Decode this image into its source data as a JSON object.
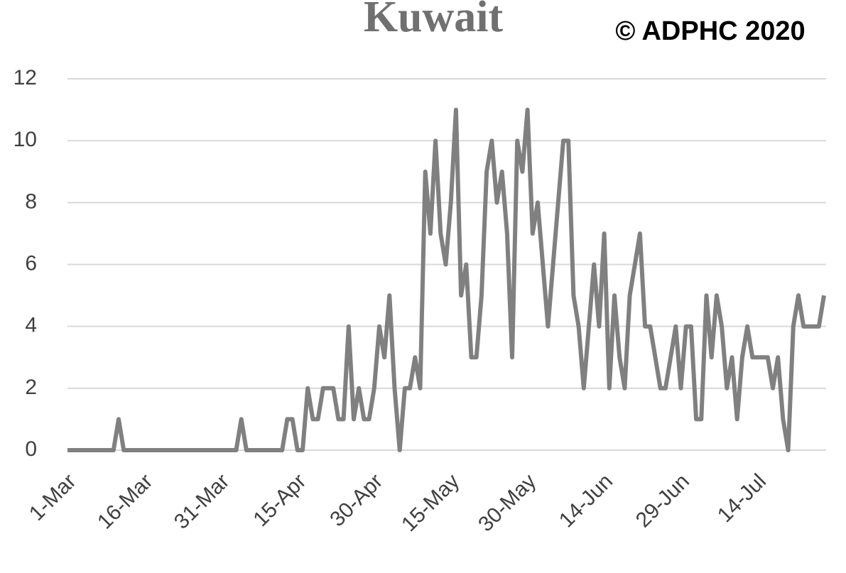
{
  "chart_data": {
    "type": "line",
    "title": "Kuwait",
    "annotation": "© ADPHC 2020",
    "categories": [
      "1-Mar",
      null,
      null,
      null,
      null,
      null,
      null,
      null,
      null,
      null,
      null,
      null,
      null,
      null,
      null,
      "16-Mar",
      null,
      null,
      null,
      null,
      null,
      null,
      null,
      null,
      null,
      null,
      null,
      null,
      null,
      null,
      "31-Mar",
      null,
      null,
      null,
      null,
      null,
      null,
      null,
      null,
      null,
      null,
      null,
      null,
      null,
      null,
      "15-Apr",
      null,
      null,
      null,
      null,
      null,
      null,
      null,
      null,
      null,
      null,
      null,
      null,
      null,
      null,
      "30-Apr",
      null,
      null,
      null,
      null,
      null,
      null,
      null,
      null,
      null,
      null,
      null,
      null,
      null,
      null,
      "15-May",
      null,
      null,
      null,
      null,
      null,
      null,
      null,
      null,
      null,
      null,
      null,
      null,
      null,
      null,
      "30-May",
      null,
      null,
      null,
      null,
      null,
      null,
      null,
      null,
      null,
      null,
      null,
      null,
      null,
      null,
      "14-Jun",
      null,
      null,
      null,
      null,
      null,
      null,
      null,
      null,
      null,
      null,
      null,
      null,
      null,
      null,
      "29-Jun",
      null,
      null,
      null,
      null,
      null,
      null,
      null,
      null,
      null,
      null,
      null,
      null,
      null,
      null,
      "14-Jul",
      null,
      null,
      null,
      null,
      null,
      null,
      null,
      null,
      null,
      null,
      null,
      null,
      null
    ],
    "series": [
      {
        "name": "Kuwait",
        "color": "#808080",
        "values": [
          0,
          0,
          0,
          0,
          0,
          0,
          0,
          0,
          0,
          0,
          1,
          0,
          0,
          0,
          0,
          0,
          0,
          0,
          0,
          0,
          0,
          0,
          0,
          0,
          0,
          0,
          0,
          0,
          0,
          0,
          0,
          0,
          0,
          0,
          1,
          0,
          0,
          0,
          0,
          0,
          0,
          0,
          0,
          1,
          1,
          0,
          0,
          2,
          1,
          1,
          2,
          2,
          2,
          1,
          1,
          4,
          1,
          2,
          1,
          1,
          2,
          4,
          3,
          5,
          2,
          0,
          2,
          2,
          3,
          2,
          9,
          7,
          10,
          7,
          6,
          8,
          11,
          5,
          6,
          3,
          3,
          5,
          9,
          10,
          8,
          9,
          7,
          3,
          10,
          9,
          11,
          7,
          8,
          6,
          4,
          6,
          8,
          10,
          10,
          5,
          4,
          2,
          4,
          6,
          4,
          7,
          2,
          5,
          3,
          2,
          5,
          6,
          7,
          4,
          4,
          3,
          2,
          2,
          3,
          4,
          2,
          4,
          4,
          1,
          1,
          5,
          3,
          5,
          4,
          2,
          3,
          1,
          3,
          4,
          3,
          3,
          3,
          3,
          2,
          3,
          1,
          0,
          4,
          5,
          4,
          4,
          4,
          4,
          5
        ]
      }
    ],
    "ylim": [
      0,
      12
    ],
    "yticks": [
      0,
      2,
      4,
      6,
      8,
      10,
      12
    ],
    "grid": true
  }
}
